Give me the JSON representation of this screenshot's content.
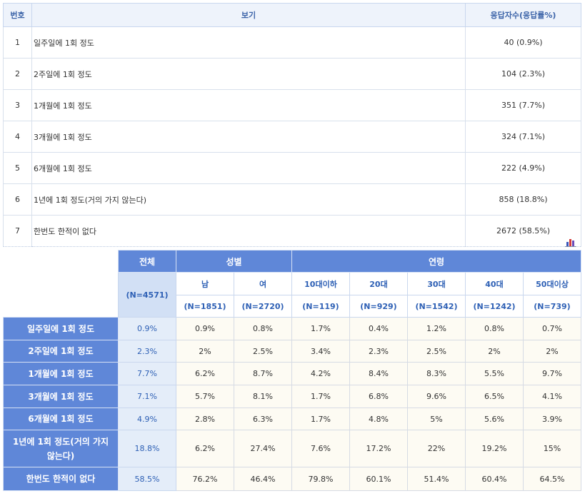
{
  "top_table": {
    "headers": {
      "no": "번호",
      "option": "보기",
      "count": "응답자수(응답률%)"
    },
    "rows": [
      {
        "no": "1",
        "option": "일주일에 1회 정도",
        "count": "40 (0.9%)"
      },
      {
        "no": "2",
        "option": "2주일에 1회 정도",
        "count": "104 (2.3%)"
      },
      {
        "no": "3",
        "option": "1개월에 1회 정도",
        "count": "351 (7.7%)"
      },
      {
        "no": "4",
        "option": "3개월에 1회 정도",
        "count": "324 (7.1%)"
      },
      {
        "no": "5",
        "option": "6개월에 1회 정도",
        "count": "222 (4.9%)"
      },
      {
        "no": "6",
        "option": "1년에 1회 정도(거의 가지 않는다)",
        "count": "858 (18.8%)"
      },
      {
        "no": "7",
        "option": "한번도 한적이 없다",
        "count": "2672 (58.5%)"
      }
    ]
  },
  "chart_icon": "bar-chart-icon",
  "cross_table": {
    "total_label": "전체",
    "total_n": "(N=4571)",
    "groups": {
      "gender": "성별",
      "age": "연령"
    },
    "columns": [
      {
        "label": "남",
        "n": "(N=1851)"
      },
      {
        "label": "여",
        "n": "(N=2720)"
      },
      {
        "label": "10대이하",
        "n": "(N=119)"
      },
      {
        "label": "20대",
        "n": "(N=929)"
      },
      {
        "label": "30대",
        "n": "(N=1542)"
      },
      {
        "label": "40대",
        "n": "(N=1242)"
      },
      {
        "label": "50대이상",
        "n": "(N=739)"
      }
    ],
    "rows": [
      {
        "label": "일주일에 1회 정도",
        "total": "0.9%",
        "values": [
          "0.9%",
          "0.8%",
          "1.7%",
          "0.4%",
          "1.2%",
          "0.8%",
          "0.7%"
        ]
      },
      {
        "label": "2주일에 1회 정도",
        "total": "2.3%",
        "values": [
          "2%",
          "2.5%",
          "3.4%",
          "2.3%",
          "2.5%",
          "2%",
          "2%"
        ]
      },
      {
        "label": "1개월에 1회 정도",
        "total": "7.7%",
        "values": [
          "6.2%",
          "8.7%",
          "4.2%",
          "8.4%",
          "8.3%",
          "5.5%",
          "9.7%"
        ]
      },
      {
        "label": "3개월에 1회 정도",
        "total": "7.1%",
        "values": [
          "5.7%",
          "8.1%",
          "1.7%",
          "6.8%",
          "9.6%",
          "6.5%",
          "4.1%"
        ]
      },
      {
        "label": "6개월에 1회 정도",
        "total": "4.9%",
        "values": [
          "2.8%",
          "6.3%",
          "1.7%",
          "4.8%",
          "5%",
          "5.6%",
          "3.9%"
        ]
      },
      {
        "label": "1년에 1회 정도(거의 가지 않는다)",
        "total": "18.8%",
        "values": [
          "6.2%",
          "27.4%",
          "7.6%",
          "17.2%",
          "22%",
          "19.2%",
          "15%"
        ]
      },
      {
        "label": "한번도 한적이 없다",
        "total": "58.5%",
        "values": [
          "76.2%",
          "46.4%",
          "79.8%",
          "60.1%",
          "51.4%",
          "60.4%",
          "64.5%"
        ]
      }
    ]
  }
}
